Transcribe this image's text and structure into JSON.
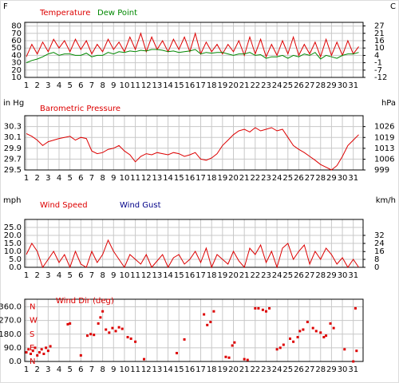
{
  "chart_data": [
    {
      "type": "line",
      "ylabel": "F",
      "y2label": "C",
      "x": [
        1,
        1.5,
        2,
        2.5,
        3,
        3.5,
        4,
        4.5,
        5,
        5.5,
        6,
        6.5,
        7,
        7.5,
        8,
        8.5,
        9,
        9.5,
        10,
        10.5,
        11,
        11.5,
        12,
        12.5,
        13,
        13.5,
        14,
        14.5,
        15,
        15.5,
        16,
        16.5,
        17,
        17.5,
        18,
        18.5,
        19,
        19.5,
        20,
        20.5,
        21,
        21.5,
        22,
        22.5,
        23,
        23.5,
        24,
        24.5,
        25,
        25.5,
        26,
        26.5,
        27,
        27.5,
        28,
        28.5,
        29,
        29.5,
        30,
        30.5,
        31,
        31.5
      ],
      "series": [
        {
          "name": "Temperature",
          "color": "#dd0000",
          "values": [
            38,
            55,
            42,
            58,
            45,
            62,
            50,
            60,
            45,
            62,
            48,
            60,
            42,
            55,
            45,
            62,
            48,
            58,
            45,
            65,
            48,
            70,
            45,
            65,
            48,
            60,
            45,
            62,
            48,
            65,
            45,
            70,
            42,
            58,
            45,
            55,
            42,
            55,
            45,
            60,
            40,
            65,
            42,
            62,
            38,
            55,
            40,
            60,
            42,
            65,
            40,
            55,
            42,
            58,
            38,
            62,
            40,
            58,
            40,
            60,
            42,
            52
          ]
        },
        {
          "name": "Dew Point",
          "color": "#008800",
          "values": [
            30,
            33,
            35,
            38,
            42,
            44,
            40,
            42,
            42,
            40,
            40,
            43,
            38,
            40,
            40,
            44,
            42,
            45,
            44,
            46,
            45,
            47,
            46,
            48,
            48,
            47,
            45,
            46,
            44,
            45,
            46,
            48,
            42,
            44,
            43,
            44,
            44,
            42,
            40,
            42,
            42,
            44,
            40,
            41,
            36,
            38,
            38,
            40,
            36,
            40,
            38,
            42,
            40,
            44,
            35,
            40,
            38,
            36,
            40,
            42,
            42,
            44
          ]
        }
      ],
      "xlim": [
        0.85,
        31.9
      ],
      "xticks": [
        1,
        2,
        3,
        4,
        5,
        6,
        7,
        8,
        9,
        10,
        11,
        12,
        13,
        14,
        15,
        16,
        17,
        18,
        19,
        20,
        21,
        22,
        23,
        24,
        25,
        26,
        27,
        28,
        29,
        30,
        31
      ],
      "ylim": [
        10,
        85
      ],
      "yticks": [
        10,
        20,
        30,
        40,
        50,
        60,
        70,
        80
      ],
      "y2lim": [
        -12.2,
        29.4
      ],
      "y2ticks": [
        {
          "value": -12.2,
          "label": "-12"
        },
        {
          "value": -6.7,
          "label": "-7"
        },
        {
          "value": -1.1,
          "label": "-1"
        },
        {
          "value": 4.4,
          "label": "4"
        },
        {
          "value": 10,
          "label": "10"
        },
        {
          "value": 15.6,
          "label": "16"
        },
        {
          "value": 21.1,
          "label": "21"
        },
        {
          "value": 26.7,
          "label": "27"
        }
      ]
    },
    {
      "type": "line",
      "ylabel": "in Hg",
      "y2label": "hPa",
      "x": [
        1,
        1.5,
        2,
        2.5,
        3,
        3.5,
        4,
        4.5,
        5,
        5.5,
        6,
        6.5,
        7,
        7.5,
        8,
        8.5,
        9,
        9.5,
        10,
        10.5,
        11,
        11.5,
        12,
        12.5,
        13,
        13.5,
        14,
        14.5,
        15,
        15.5,
        16,
        16.5,
        17,
        17.5,
        18,
        18.5,
        19,
        19.5,
        20,
        20.5,
        21,
        21.5,
        22,
        22.5,
        23,
        23.5,
        24,
        24.5,
        25,
        25.5,
        26,
        26.5,
        27,
        27.5,
        28,
        28.5,
        29,
        29.5,
        30,
        30.5,
        31,
        31.5
      ],
      "series": [
        {
          "name": "Barometric Pressure",
          "color": "#dd0000",
          "values": [
            30.17,
            30.12,
            30.05,
            29.95,
            30.02,
            30.05,
            30.08,
            30.1,
            30.12,
            30.05,
            30.1,
            30.08,
            29.85,
            29.8,
            29.82,
            29.88,
            29.9,
            29.95,
            29.85,
            29.78,
            29.65,
            29.75,
            29.8,
            29.78,
            29.82,
            29.8,
            29.78,
            29.82,
            29.8,
            29.75,
            29.78,
            29.82,
            29.7,
            29.68,
            29.72,
            29.8,
            29.95,
            30.05,
            30.15,
            30.22,
            30.25,
            30.2,
            30.28,
            30.22,
            30.25,
            30.28,
            30.22,
            30.25,
            30.1,
            29.95,
            29.88,
            29.82,
            29.75,
            29.68,
            29.6,
            29.55,
            29.5,
            29.58,
            29.75,
            29.95,
            30.05,
            30.15
          ]
        }
      ],
      "xlim": [
        0.85,
        31.9
      ],
      "xticks": [
        1,
        2,
        3,
        4,
        5,
        6,
        7,
        8,
        9,
        10,
        11,
        12,
        13,
        14,
        15,
        16,
        17,
        18,
        19,
        20,
        21,
        22,
        23,
        24,
        25,
        26,
        27,
        28,
        29,
        30,
        31
      ],
      "ylim": [
        29.5,
        30.5
      ],
      "yticks": [
        29.5,
        29.7,
        29.9,
        30.1,
        30.3
      ],
      "y2lim": [
        999.0,
        1032.9
      ],
      "y2ticks": [
        {
          "value": 999.0,
          "label": "999"
        },
        {
          "value": 1005.7,
          "label": "1006"
        },
        {
          "value": 1012.5,
          "label": "1013"
        },
        {
          "value": 1019.3,
          "label": "1019"
        },
        {
          "value": 1026.1,
          "label": "1026"
        }
      ]
    },
    {
      "type": "line",
      "ylabel": "mph",
      "y2label": "km/h",
      "x": [
        1,
        1.5,
        2,
        2.5,
        3,
        3.5,
        4,
        4.5,
        5,
        5.5,
        6,
        6.5,
        7,
        7.5,
        8,
        8.5,
        9,
        9.5,
        10,
        10.5,
        11,
        11.5,
        12,
        12.5,
        13,
        13.5,
        14,
        14.5,
        15,
        15.5,
        16,
        16.5,
        17,
        17.5,
        18,
        18.5,
        19,
        19.5,
        20,
        20.5,
        21,
        21.5,
        22,
        22.5,
        23,
        23.5,
        24,
        24.5,
        25,
        25.5,
        26,
        26.5,
        27,
        27.5,
        28,
        28.5,
        29,
        29.5,
        30,
        30.5,
        31,
        31.5
      ],
      "series": [
        {
          "name": "Wind Speed",
          "color": "#dd0000",
          "values": [
            8,
            15,
            10,
            0,
            5,
            10,
            3,
            8,
            0,
            10,
            2,
            0,
            10,
            3,
            8,
            17,
            10,
            5,
            0,
            8,
            5,
            2,
            8,
            0,
            4,
            8,
            0,
            6,
            8,
            2,
            5,
            10,
            3,
            12,
            0,
            8,
            5,
            2,
            10,
            4,
            0,
            12,
            8,
            14,
            3,
            10,
            0,
            12,
            15,
            5,
            10,
            14,
            2,
            10,
            5,
            12,
            8,
            2,
            6,
            0,
            5,
            0
          ]
        },
        {
          "name": "Wind Gust",
          "color": "#000088",
          "values": [
            null,
            null,
            null,
            null,
            null,
            null,
            null,
            null,
            null,
            null,
            null,
            null,
            null,
            null,
            null,
            null,
            null,
            null,
            null,
            null,
            null,
            null,
            null,
            null,
            null,
            null,
            null,
            null,
            null,
            null,
            null,
            null,
            null,
            null,
            null,
            null,
            null,
            null,
            null,
            null,
            null,
            null,
            null,
            null,
            null,
            null,
            null,
            null,
            null,
            null,
            null,
            null,
            null,
            null,
            null,
            null,
            null,
            null,
            null,
            null,
            null,
            null
          ]
        }
      ],
      "xlim": [
        0.85,
        31.9
      ],
      "xticks": [
        1,
        2,
        3,
        4,
        5,
        6,
        7,
        8,
        9,
        10,
        11,
        12,
        13,
        14,
        15,
        16,
        17,
        18,
        19,
        20,
        21,
        22,
        23,
        24,
        25,
        26,
        27,
        28,
        29,
        30,
        31
      ],
      "ylim": [
        0,
        30
      ],
      "yticks": [
        {
          "value": 0,
          "label": "0.0"
        },
        {
          "value": 5,
          "label": "5.0"
        },
        {
          "value": 10,
          "label": "10.0"
        },
        {
          "value": 15,
          "label": "15.0"
        },
        {
          "value": 20,
          "label": "20.0"
        },
        {
          "value": 25,
          "label": "25.0"
        }
      ],
      "y2lim": [
        0,
        48.3
      ],
      "y2ticks": [
        0,
        {
          "value": 8.0,
          "label": "8"
        },
        {
          "value": 15.9,
          "label": "16"
        },
        {
          "value": 24.1,
          "label": "24"
        },
        {
          "value": 32.2,
          "label": "32"
        }
      ]
    },
    {
      "type": "scatter",
      "x": [
        1.0,
        1.2,
        1.4,
        1.6,
        1.8,
        2.0,
        2.2,
        2.4,
        2.6,
        2.8,
        3.0,
        3.2,
        4.8,
        5.0,
        6.0,
        6.6,
        6.9,
        7.2,
        7.6,
        7.8,
        8.0,
        8.3,
        8.6,
        8.9,
        9.2,
        9.5,
        9.8,
        10.3,
        10.6,
        11.0,
        11.8,
        14.8,
        15.5,
        17.3,
        17.6,
        17.9,
        18.2,
        19.3,
        19.6,
        19.9,
        20.1,
        21.0,
        21.3,
        22.0,
        22.3,
        22.7,
        23.0,
        23.3,
        24.0,
        24.3,
        24.6,
        25.2,
        25.5,
        25.9,
        26.1,
        26.4,
        26.8,
        27.3,
        27.6,
        28.0,
        28.3,
        28.5,
        28.9,
        29.2,
        30.2,
        31.0,
        31.2,
        31.3
      ],
      "series": [
        {
          "name": "Wind Dir (deg)",
          "color": "#dd0000",
          "values": [
            60,
            80,
            50,
            70,
            90,
            40,
            60,
            80,
            50,
            90,
            70,
            100,
            245,
            250,
            40,
            170,
            180,
            175,
            250,
            290,
            330,
            210,
            190,
            220,
            200,
            225,
            215,
            160,
            150,
            130,
            15,
            55,
            145,
            310,
            240,
            260,
            330,
            30,
            25,
            105,
            125,
            15,
            10,
            350,
            350,
            340,
            330,
            350,
            80,
            90,
            110,
            150,
            130,
            160,
            200,
            210,
            260,
            220,
            200,
            190,
            160,
            170,
            250,
            220,
            80,
            0,
            350,
            70
          ]
        }
      ],
      "xlim": [
        0.85,
        31.9
      ],
      "xticks": [
        1,
        2,
        3,
        4,
        5,
        6,
        7,
        8,
        9,
        10,
        11,
        12,
        13,
        14,
        15,
        16,
        17,
        18,
        19,
        20,
        21,
        22,
        23,
        24,
        25,
        26,
        27,
        28,
        29,
        30,
        31
      ],
      "ylim": [
        0,
        410
      ],
      "yticks": [
        {
          "value": 0,
          "label": "0.0"
        },
        {
          "value": 90,
          "label": "90.0"
        },
        {
          "value": 180,
          "label": "180.0"
        },
        {
          "value": 270,
          "label": "270.0"
        },
        {
          "value": 360,
          "label": "360.0"
        }
      ],
      "compass_ticks": [
        {
          "value": 0,
          "label": "N"
        },
        {
          "value": 90,
          "label": "E"
        },
        {
          "value": 180,
          "label": "S"
        },
        {
          "value": 270,
          "label": "W"
        },
        {
          "value": 360,
          "label": "N"
        }
      ]
    }
  ]
}
